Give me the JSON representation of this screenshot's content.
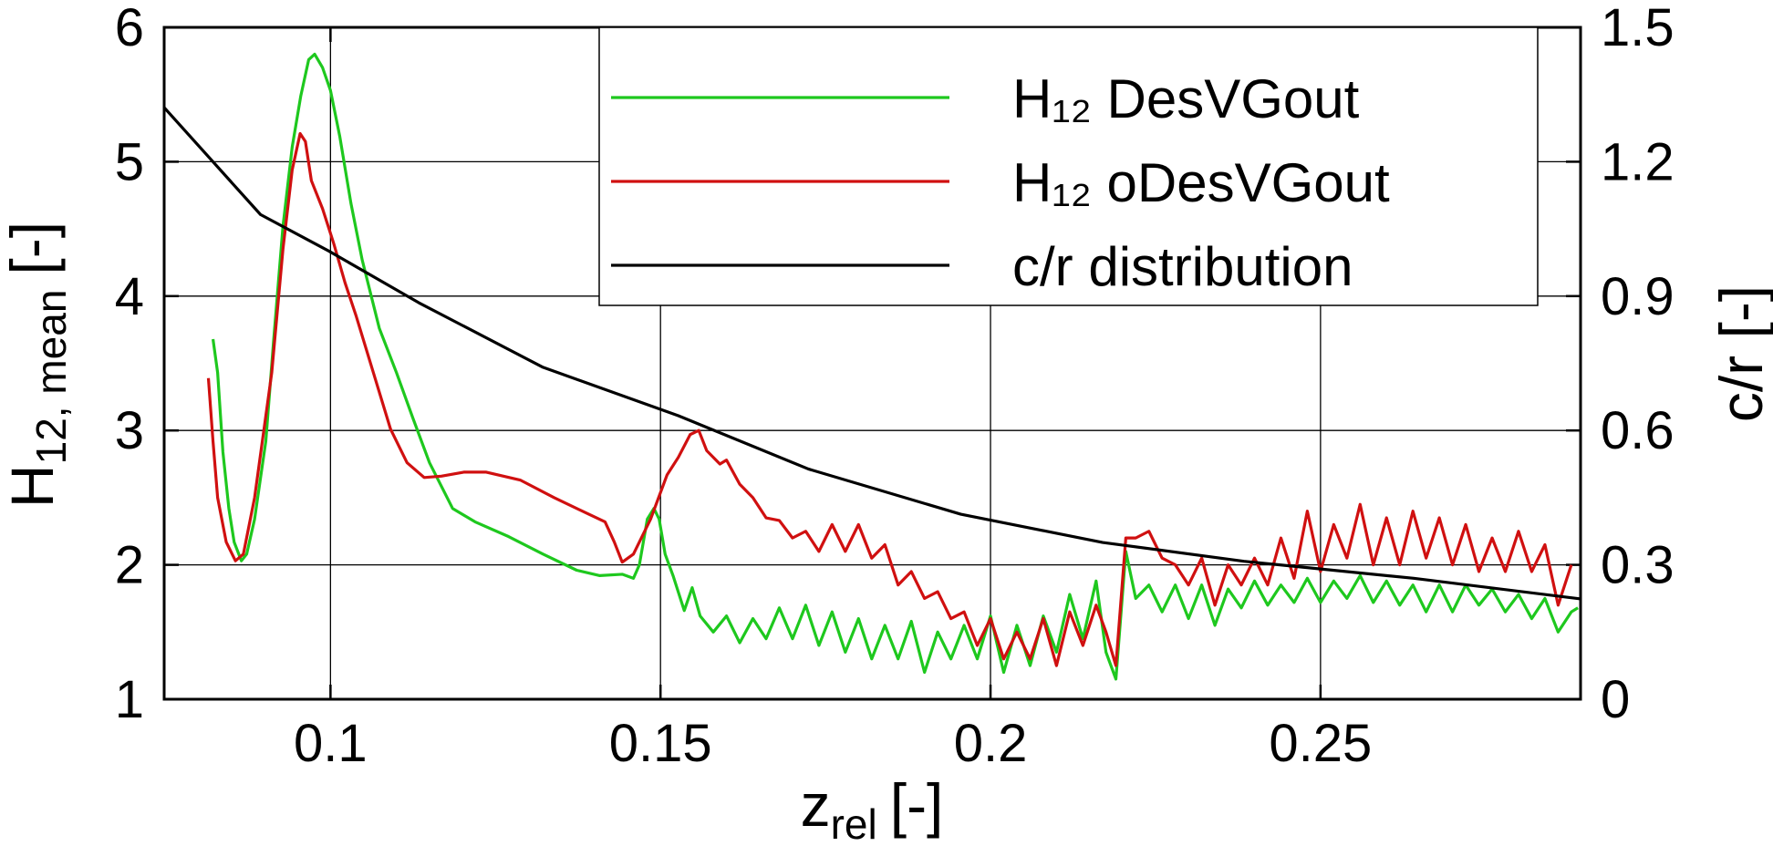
{
  "chart_data": {
    "type": "line",
    "xlabel": {
      "text": "z",
      "sub": "rel",
      "unit": "[-]"
    },
    "ylabel": {
      "text": "H",
      "sub": "12, mean",
      "unit": "[-]"
    },
    "y2label": "c/r [-]",
    "xlim": [
      0.0748,
      0.2894
    ],
    "xticks": [
      0.1,
      0.15,
      0.2,
      0.25
    ],
    "ylim": [
      1,
      6
    ],
    "yticks": [
      1,
      2,
      3,
      4,
      5,
      6
    ],
    "y2lim": [
      0,
      1.5
    ],
    "y2ticks": [
      0,
      0.3,
      0.6,
      0.9,
      1.2,
      1.5
    ],
    "grid": true,
    "legend": "upper right",
    "series": [
      {
        "name": "H₁₂ DesVGout",
        "color": "#1ec81e",
        "axis": "y",
        "x": [
          0.0822,
          0.0829,
          0.0837,
          0.0846,
          0.0854,
          0.0865,
          0.0873,
          0.0885,
          0.0902,
          0.0914,
          0.0928,
          0.0942,
          0.0955,
          0.0967,
          0.0976,
          0.0988,
          0.1,
          0.1014,
          0.1031,
          0.1048,
          0.1074,
          0.11,
          0.1125,
          0.115,
          0.1185,
          0.1219,
          0.127,
          0.1322,
          0.1373,
          0.1408,
          0.1442,
          0.1459,
          0.1468,
          0.148,
          0.149,
          0.1498,
          0.1507,
          0.1519,
          0.1536,
          0.1548,
          0.156,
          0.158,
          0.16,
          0.162,
          0.164,
          0.166,
          0.168,
          0.17,
          0.172,
          0.174,
          0.176,
          0.178,
          0.18,
          0.182,
          0.184,
          0.186,
          0.188,
          0.19,
          0.192,
          0.194,
          0.196,
          0.198,
          0.2,
          0.202,
          0.204,
          0.206,
          0.208,
          0.21,
          0.212,
          0.214,
          0.216,
          0.2175,
          0.219,
          0.2205,
          0.222,
          0.224,
          0.226,
          0.228,
          0.23,
          0.232,
          0.234,
          0.236,
          0.238,
          0.24,
          0.242,
          0.244,
          0.246,
          0.248,
          0.25,
          0.252,
          0.254,
          0.256,
          0.258,
          0.26,
          0.262,
          0.264,
          0.266,
          0.268,
          0.27,
          0.272,
          0.274,
          0.276,
          0.278,
          0.28,
          0.282,
          0.284,
          0.286,
          0.288,
          0.289
        ],
        "values": [
          3.68,
          3.43,
          2.84,
          2.42,
          2.17,
          2.03,
          2.08,
          2.34,
          2.92,
          3.68,
          4.52,
          5.11,
          5.49,
          5.76,
          5.8,
          5.7,
          5.53,
          5.19,
          4.69,
          4.27,
          3.76,
          3.43,
          3.09,
          2.76,
          2.42,
          2.32,
          2.21,
          2.08,
          1.96,
          1.92,
          1.93,
          1.9,
          2.0,
          2.34,
          2.42,
          2.34,
          2.08,
          1.92,
          1.66,
          1.83,
          1.62,
          1.5,
          1.62,
          1.42,
          1.6,
          1.45,
          1.68,
          1.45,
          1.7,
          1.4,
          1.65,
          1.35,
          1.6,
          1.3,
          1.55,
          1.3,
          1.58,
          1.2,
          1.5,
          1.3,
          1.55,
          1.3,
          1.62,
          1.2,
          1.55,
          1.25,
          1.62,
          1.35,
          1.78,
          1.45,
          1.88,
          1.35,
          1.15,
          2.1,
          1.75,
          1.85,
          1.65,
          1.85,
          1.6,
          1.85,
          1.55,
          1.82,
          1.68,
          1.88,
          1.7,
          1.85,
          1.72,
          1.9,
          1.72,
          1.88,
          1.75,
          1.92,
          1.72,
          1.88,
          1.7,
          1.85,
          1.65,
          1.85,
          1.65,
          1.85,
          1.7,
          1.82,
          1.65,
          1.78,
          1.6,
          1.75,
          1.5,
          1.65,
          1.68
        ]
      },
      {
        "name": "H₁₂ oDesVGout",
        "color": "#d01010",
        "axis": "y",
        "x": [
          0.0815,
          0.0822,
          0.0829,
          0.0842,
          0.0856,
          0.0868,
          0.0885,
          0.0911,
          0.0928,
          0.0942,
          0.0954,
          0.0962,
          0.0971,
          0.0988,
          0.1005,
          0.1022,
          0.1039,
          0.1065,
          0.1091,
          0.1116,
          0.1142,
          0.1168,
          0.1202,
          0.1236,
          0.1288,
          0.1339,
          0.139,
          0.1416,
          0.143,
          0.1442,
          0.1459,
          0.1485,
          0.151,
          0.1527,
          0.1545,
          0.1558,
          0.157,
          0.159,
          0.16,
          0.162,
          0.164,
          0.166,
          0.168,
          0.17,
          0.172,
          0.174,
          0.176,
          0.178,
          0.18,
          0.182,
          0.184,
          0.186,
          0.188,
          0.19,
          0.192,
          0.194,
          0.196,
          0.198,
          0.2,
          0.202,
          0.204,
          0.206,
          0.208,
          0.21,
          0.212,
          0.214,
          0.216,
          0.2175,
          0.219,
          0.2205,
          0.222,
          0.224,
          0.226,
          0.228,
          0.23,
          0.232,
          0.234,
          0.236,
          0.238,
          0.24,
          0.242,
          0.244,
          0.246,
          0.248,
          0.25,
          0.252,
          0.254,
          0.256,
          0.258,
          0.26,
          0.262,
          0.264,
          0.266,
          0.268,
          0.27,
          0.272,
          0.274,
          0.276,
          0.278,
          0.28,
          0.282,
          0.284,
          0.286,
          0.288
        ],
        "values": [
          3.39,
          2.92,
          2.5,
          2.17,
          2.03,
          2.08,
          2.5,
          3.43,
          4.35,
          4.94,
          5.21,
          5.15,
          4.86,
          4.65,
          4.39,
          4.1,
          3.85,
          3.43,
          3.01,
          2.76,
          2.65,
          2.66,
          2.69,
          2.69,
          2.63,
          2.5,
          2.38,
          2.32,
          2.17,
          2.02,
          2.08,
          2.34,
          2.67,
          2.8,
          2.97,
          3.0,
          2.85,
          2.75,
          2.78,
          2.6,
          2.5,
          2.35,
          2.33,
          2.2,
          2.25,
          2.1,
          2.3,
          2.1,
          2.3,
          2.05,
          2.15,
          1.85,
          1.95,
          1.75,
          1.8,
          1.6,
          1.65,
          1.4,
          1.6,
          1.3,
          1.5,
          1.3,
          1.6,
          1.25,
          1.65,
          1.4,
          1.7,
          1.5,
          1.25,
          2.2,
          2.2,
          2.25,
          2.05,
          2.0,
          1.85,
          2.05,
          1.7,
          2.0,
          1.85,
          2.05,
          1.85,
          2.2,
          1.9,
          2.4,
          1.95,
          2.3,
          2.05,
          2.45,
          2.0,
          2.35,
          2.0,
          2.4,
          2.05,
          2.35,
          2.0,
          2.3,
          1.95,
          2.2,
          1.95,
          2.25,
          1.95,
          2.15,
          1.7,
          2.0
        ]
      },
      {
        "name": "c/r distribution",
        "color": "#000000",
        "axis": "y2",
        "x": [
          0.0748,
          0.0817,
          0.0894,
          0.0997,
          0.1134,
          0.1322,
          0.1527,
          0.1724,
          0.1955,
          0.217,
          0.2384,
          0.2641,
          0.2894
        ],
        "values": [
          1.321,
          1.208,
          1.082,
          1.001,
          0.885,
          0.741,
          0.633,
          0.514,
          0.413,
          0.35,
          0.308,
          0.27,
          0.224
        ]
      }
    ]
  }
}
